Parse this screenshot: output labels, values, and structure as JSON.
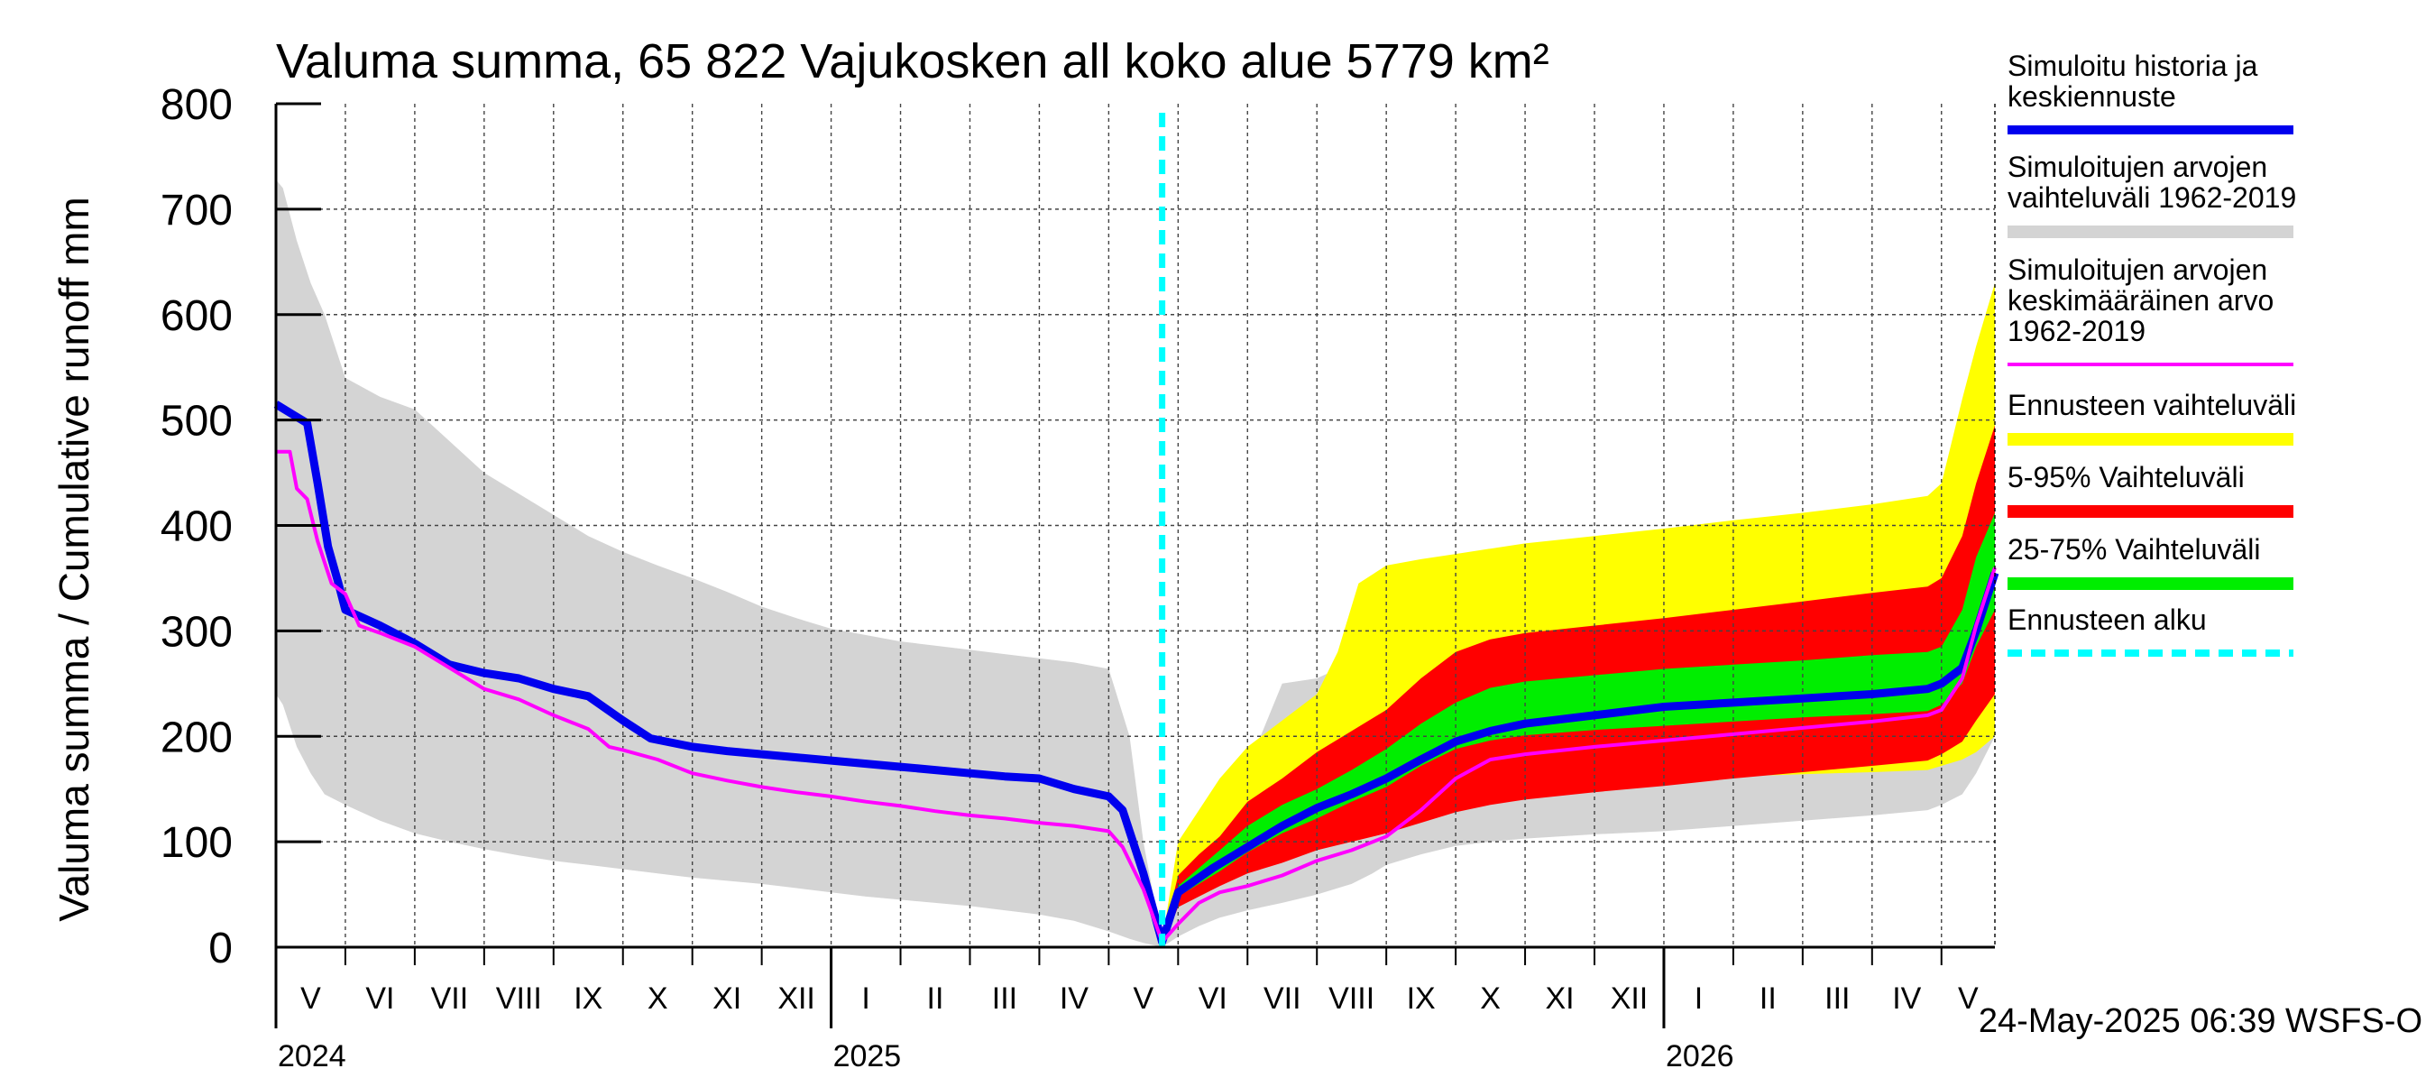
{
  "chart_data": {
    "type": "area",
    "title": "Valuma summa, 65 822 Vajukosken all koko alue 5779 km²",
    "ylabel": "Valuma summa / Cumulative runoff    mm",
    "ylim": [
      0,
      800
    ],
    "yticks": [
      0,
      100,
      200,
      300,
      400,
      500,
      600,
      700,
      800
    ],
    "grid": true,
    "legend_position": "right",
    "x_start": "2024-05-01",
    "x_end": "2026-05-24",
    "forecast_start": "2025-05-24",
    "months": [
      {
        "label": "V",
        "start": 0.0,
        "end": 1.0
      },
      {
        "label": "VI",
        "start": 1.0,
        "end": 2.0
      },
      {
        "label": "VII",
        "start": 2.0,
        "end": 3.0
      },
      {
        "label": "VIII",
        "start": 3.0,
        "end": 4.0
      },
      {
        "label": "IX",
        "start": 4.0,
        "end": 5.0
      },
      {
        "label": "X",
        "start": 5.0,
        "end": 6.0
      },
      {
        "label": "XI",
        "start": 6.0,
        "end": 7.0
      },
      {
        "label": "XII",
        "start": 7.0,
        "end": 8.0
      },
      {
        "label": "I",
        "start": 8.0,
        "end": 9.0
      },
      {
        "label": "II",
        "start": 9.0,
        "end": 10.0
      },
      {
        "label": "III",
        "start": 10.0,
        "end": 11.0
      },
      {
        "label": "IV",
        "start": 11.0,
        "end": 12.0
      },
      {
        "label": "V",
        "start": 12.0,
        "end": 13.0
      },
      {
        "label": "VI",
        "start": 13.0,
        "end": 14.0
      },
      {
        "label": "VII",
        "start": 14.0,
        "end": 15.0
      },
      {
        "label": "VIII",
        "start": 15.0,
        "end": 16.0
      },
      {
        "label": "IX",
        "start": 16.0,
        "end": 17.0
      },
      {
        "label": "X",
        "start": 17.0,
        "end": 18.0
      },
      {
        "label": "XI",
        "start": 18.0,
        "end": 19.0
      },
      {
        "label": "XII",
        "start": 19.0,
        "end": 20.0
      },
      {
        "label": "I",
        "start": 20.0,
        "end": 21.0
      },
      {
        "label": "II",
        "start": 21.0,
        "end": 22.0
      },
      {
        "label": "III",
        "start": 22.0,
        "end": 23.0
      },
      {
        "label": "IV",
        "start": 23.0,
        "end": 24.0
      },
      {
        "label": "V",
        "start": 24.0,
        "end": 24.77
      }
    ],
    "years": [
      {
        "label": "2024",
        "at": 0.0
      },
      {
        "label": "2025",
        "at": 8.0
      },
      {
        "label": "2026",
        "at": 20.0
      }
    ],
    "year_boundaries": [
      8.0,
      20.0
    ],
    "x_max": 24.77,
    "forecast_at": 12.77,
    "series": [
      {
        "name": "Simuloitujen arvojen vaihteluväli 1962-2019",
        "kind": "band",
        "color": "#d4d4d4",
        "x": [
          0,
          0.1,
          0.3,
          0.5,
          0.7,
          1.0,
          1.5,
          2.0,
          2.5,
          3.0,
          3.5,
          4.0,
          4.5,
          5.0,
          5.5,
          6.0,
          6.5,
          7.0,
          7.5,
          8.0,
          8.5,
          9.0,
          9.5,
          10.0,
          10.5,
          11.0,
          11.5,
          12.0,
          12.3,
          12.5,
          12.77
        ],
        "upper": [
          728,
          720,
          670,
          630,
          600,
          540,
          522,
          510,
          480,
          450,
          430,
          410,
          390,
          375,
          362,
          350,
          337,
          323,
          312,
          302,
          296,
          290,
          286,
          282,
          278,
          274,
          270,
          264,
          200,
          100,
          5
        ],
        "lower": [
          240,
          230,
          190,
          165,
          145,
          135,
          120,
          108,
          100,
          93,
          87,
          82,
          78,
          74,
          70,
          66,
          63,
          60,
          56,
          52,
          48,
          45,
          42,
          39,
          35,
          31,
          25,
          15,
          8,
          4,
          0
        ],
        "x2": [
          12.77,
          13.0,
          13.3,
          13.6,
          14.0,
          14.5,
          15.0,
          15.5,
          15.8,
          16.0,
          16.5,
          17.0,
          17.5,
          18.0,
          19.0,
          20.0,
          21.0,
          22.0,
          23.0,
          23.8,
          24.0,
          24.3,
          24.5,
          24.77
        ],
        "upper2": [
          5,
          80,
          110,
          150,
          170,
          250,
          255,
          270,
          285,
          288,
          290,
          293,
          297,
          300,
          305,
          310,
          320,
          330,
          345,
          360,
          370,
          460,
          520,
          575
        ],
        "lower2": [
          0,
          10,
          20,
          28,
          35,
          42,
          50,
          60,
          70,
          78,
          88,
          96,
          100,
          103,
          107,
          110,
          115,
          120,
          125,
          130,
          135,
          145,
          165,
          200
        ]
      },
      {
        "name": "Ennusteen vaihteluväli",
        "kind": "band",
        "color": "#ffff00",
        "x": [
          12.77,
          13.0,
          13.3,
          13.6,
          14.0,
          14.5,
          15.0,
          15.3,
          15.6,
          16.0,
          16.5,
          17.0,
          17.5,
          18.0,
          19.0,
          20.0,
          21.0,
          22.0,
          23.0,
          23.8,
          24.0,
          24.3,
          24.5,
          24.77
        ],
        "upper": [
          5,
          100,
          130,
          160,
          190,
          215,
          240,
          280,
          345,
          362,
          368,
          373,
          378,
          383,
          390,
          397,
          405,
          412,
          420,
          428,
          440,
          520,
          570,
          630
        ],
        "lower": [
          0,
          40,
          55,
          65,
          75,
          92,
          105,
          118,
          128,
          135,
          142,
          148,
          150,
          153,
          157,
          160,
          162,
          164,
          166,
          168,
          172,
          178,
          185,
          200
        ]
      },
      {
        "name": "5-95% Vaihteluväli",
        "kind": "band",
        "color": "#ff0000",
        "x": [
          12.77,
          13.0,
          13.3,
          13.6,
          14.0,
          14.5,
          15.0,
          15.5,
          16.0,
          16.5,
          17.0,
          17.5,
          18.0,
          19.0,
          20.0,
          21.0,
          22.0,
          23.0,
          23.8,
          24.0,
          24.3,
          24.5,
          24.77
        ],
        "upper": [
          5,
          68,
          88,
          105,
          138,
          160,
          185,
          205,
          225,
          255,
          280,
          292,
          298,
          305,
          312,
          320,
          328,
          336,
          342,
          350,
          390,
          440,
          495
        ],
        "lower": [
          0,
          38,
          48,
          58,
          70,
          80,
          92,
          100,
          108,
          118,
          128,
          135,
          140,
          147,
          153,
          160,
          166,
          172,
          177,
          183,
          195,
          215,
          240
        ]
      },
      {
        "name": "25-75% Vaihteluväli",
        "kind": "band",
        "color": "#00ee00",
        "x": [
          12.77,
          13.0,
          13.3,
          13.6,
          14.0,
          14.5,
          15.0,
          15.5,
          16.0,
          16.5,
          17.0,
          17.5,
          18.0,
          19.0,
          20.0,
          21.0,
          22.0,
          23.0,
          23.8,
          24.0,
          24.3,
          24.5,
          24.77
        ],
        "upper": [
          5,
          58,
          75,
          92,
          115,
          135,
          150,
          168,
          188,
          212,
          232,
          246,
          252,
          258,
          264,
          268,
          272,
          277,
          280,
          285,
          320,
          370,
          412
        ],
        "lower": [
          0,
          48,
          60,
          72,
          90,
          108,
          122,
          138,
          152,
          172,
          188,
          196,
          201,
          206,
          210,
          214,
          218,
          221,
          224,
          230,
          250,
          285,
          320
        ]
      },
      {
        "name": "Simuloitu historia ja keskiennuste",
        "kind": "line",
        "color": "#0000ee",
        "stroke_width": 9,
        "x": [
          0,
          0.25,
          0.45,
          0.6,
          0.75,
          0.9,
          1.0,
          1.5,
          2.0,
          2.5,
          3.0,
          3.5,
          4.0,
          4.5,
          5.0,
          5.4,
          6.0,
          6.5,
          7.0,
          7.5,
          8.0,
          8.5,
          9.0,
          9.5,
          10.0,
          10.5,
          11.0,
          11.5,
          12.0,
          12.2,
          12.5,
          12.77,
          13.0,
          13.5,
          14.0,
          14.5,
          15.0,
          15.5,
          16.0,
          16.5,
          17.0,
          17.5,
          18.0,
          19.0,
          20.0,
          21.0,
          22.0,
          23.0,
          23.8,
          24.0,
          24.3,
          24.5,
          24.77
        ],
        "y": [
          515,
          505,
          497,
          440,
          380,
          345,
          320,
          305,
          288,
          268,
          260,
          255,
          245,
          238,
          215,
          198,
          190,
          186,
          183,
          180,
          177,
          174,
          171,
          168,
          165,
          162,
          160,
          150,
          143,
          130,
          70,
          5,
          52,
          75,
          95,
          115,
          132,
          145,
          160,
          178,
          195,
          205,
          212,
          220,
          228,
          232,
          236,
          240,
          245,
          250,
          265,
          300,
          355
        ]
      },
      {
        "name": "Simuloitujen arvojen keskimääräinen arvo 1962-2019",
        "kind": "line",
        "color": "#ff00ff",
        "stroke_width": 4,
        "x": [
          0,
          0.2,
          0.3,
          0.45,
          0.6,
          0.8,
          1.0,
          1.2,
          1.5,
          2.0,
          2.5,
          3.0,
          3.5,
          4.0,
          4.5,
          4.8,
          5.0,
          5.5,
          6.0,
          6.5,
          7.0,
          7.5,
          8.0,
          8.5,
          9.0,
          9.5,
          10.0,
          10.5,
          11.0,
          11.5,
          12.0,
          12.2,
          12.5,
          12.77,
          13.0,
          13.3,
          13.6,
          14.0,
          14.5,
          15.0,
          15.5,
          16.0,
          16.5,
          17.0,
          17.5,
          18.0,
          19.0,
          20.0,
          21.0,
          22.0,
          23.0,
          23.8,
          24.0,
          24.3,
          24.5,
          24.77
        ],
        "y": [
          470,
          470,
          435,
          425,
          385,
          345,
          335,
          305,
          298,
          285,
          265,
          245,
          235,
          220,
          207,
          190,
          187,
          178,
          165,
          158,
          152,
          147,
          143,
          138,
          134,
          129,
          125,
          122,
          118,
          115,
          110,
          95,
          55,
          5,
          22,
          42,
          52,
          58,
          68,
          82,
          92,
          105,
          130,
          160,
          178,
          183,
          190,
          196,
          202,
          208,
          214,
          220,
          225,
          255,
          305,
          360
        ]
      }
    ],
    "forecast_line": {
      "name": "Ennusteen alku",
      "color": "#00ffff"
    },
    "legend": [
      {
        "label": "Simuloitu historia ja keskiennuste",
        "color": "#0000ee",
        "style": "line-thick"
      },
      {
        "label": "Simuloitujen arvojen vaihteluväli 1962-2019",
        "color": "#d4d4d4",
        "style": "bar"
      },
      {
        "label": "Simuloitujen arvojen keskimääräinen arvo   1962-2019",
        "color": "#ff00ff",
        "style": "line-thin"
      },
      {
        "label": "Ennusteen vaihteluväli",
        "color": "#ffff00",
        "style": "bar"
      },
      {
        "label": "5-95% Vaihteluväli",
        "color": "#ff0000",
        "style": "bar"
      },
      {
        "label": "25-75% Vaihteluväli",
        "color": "#00ee00",
        "style": "bar"
      },
      {
        "label": "Ennusteen alku",
        "color": "#00ffff",
        "style": "dashed"
      }
    ],
    "footer": "24-May-2025 06:39 WSFS-O"
  }
}
